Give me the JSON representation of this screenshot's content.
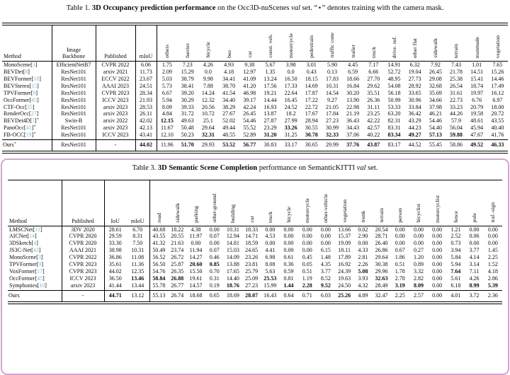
{
  "colors": {
    "cite_link": "#87b5cc",
    "panel_border": "#d7a2d3"
  },
  "star_symbol": "⋆",
  "table1": {
    "caption": {
      "label": "Table 1.",
      "title_bold": "3D Occupancy prediction performance",
      "mid": "on the Occ3D-nuScenes",
      "val": "val",
      "tail": "set. “⋆” denotes training with the camera mask."
    },
    "headers": {
      "method": "Method",
      "backbone": "Image Backbone",
      "published": "Published",
      "miou": "mIoU"
    },
    "class_columns": [
      "others",
      "barrier",
      "bicycle",
      "bus",
      "car",
      "const. veh.",
      "motorcycle",
      "pedestrain",
      "traffic cone",
      "trailer",
      "truck",
      "drive. suf.",
      "other flat",
      "sidewalk",
      "terrain",
      "manmade",
      "vegetation"
    ],
    "rows": [
      {
        "method": "MonoScene",
        "cite": "3",
        "star": false,
        "backbone": "EfficientNetB7",
        "pub": "CVPR 2022",
        "miou": "6.06",
        "miou_b": false,
        "v": [
          "1.75",
          "7.23",
          "4.26",
          "4.93",
          "9.38",
          "5.67",
          "3.98",
          "3.01",
          "5.90",
          "4.45",
          "7.17",
          "14.91",
          "6.32",
          "7.92",
          "7.43",
          "1.01",
          "7.65"
        ],
        "b": []
      },
      {
        "method": "BEVDet",
        "cite": "8",
        "star": false,
        "backbone": "ResNet101",
        "pub": "arxiv 2021",
        "miou": "11.73",
        "miou_b": false,
        "v": [
          "2.09",
          "15.29",
          "0.0",
          "4.18",
          "12.97",
          "1.35",
          "0.0",
          "0.43",
          "0.13",
          "6.59",
          "6.66",
          "52.72",
          "19.04",
          "26.45",
          "21.78",
          "14.51",
          "15.26"
        ],
        "b": []
      },
      {
        "method": "BEVFormer",
        "cite": "18",
        "star": false,
        "backbone": "ResNet101",
        "pub": "ECCV 2022",
        "miou": "23.67",
        "miou_b": false,
        "v": [
          "5.03",
          "38.79",
          "9.98",
          "34.41",
          "41.09",
          "13.24",
          "16.50",
          "18.15",
          "17.83",
          "18.66",
          "27.70",
          "48.95",
          "27.73",
          "29.08",
          "25.38",
          "15.41",
          "14.46"
        ],
        "b": []
      },
      {
        "method": "BEVStereo",
        "cite": "15",
        "star": false,
        "backbone": "ResNet101",
        "pub": "AAAI 2023",
        "miou": "24.51",
        "miou_b": false,
        "v": [
          "5.73",
          "38.41",
          "7.88",
          "38.70",
          "41.20",
          "17.56",
          "17.33",
          "14.69",
          "10.31",
          "16.84",
          "29.62",
          "54.08",
          "28.92",
          "32.68",
          "26.54",
          "18.74",
          "17.49"
        ],
        "b": []
      },
      {
        "method": "TPVFormer",
        "cite": "9",
        "star": false,
        "backbone": "ResNet101",
        "pub": "CVPR 2023",
        "miou": "28.34",
        "miou_b": false,
        "v": [
          "6.67",
          "39.20",
          "14.24",
          "41.54",
          "46.98",
          "19.21",
          "22.64",
          "17.87",
          "14.54",
          "30.20",
          "35.51",
          "56.18",
          "33.65",
          "35.69",
          "31.61",
          "19.97",
          "16.12"
        ],
        "b": []
      },
      {
        "method": "OccFormer",
        "cite": "45",
        "star": false,
        "backbone": "ResNet101",
        "pub": "ICCV 2023",
        "miou": "21.93",
        "miou_b": false,
        "v": [
          "5.94",
          "30.29",
          "12.32",
          "34.40",
          "39.17",
          "14.44",
          "16.45",
          "17.22",
          "9.27",
          "13.90",
          "26.36",
          "50.99",
          "30.96",
          "34.66",
          "22.73",
          "6.76",
          "6.97"
        ],
        "b": []
      },
      {
        "method": "CTF-Occ",
        "cite": "35",
        "star": false,
        "backbone": "ResNet101",
        "pub": "arxiv 2023",
        "miou": "28.53",
        "miou_b": false,
        "v": [
          "8.09",
          "39.33",
          "20.56",
          "38.29",
          "42.24",
          "16.93",
          "24.52",
          "22.72",
          "21.05",
          "22.98",
          "31.11",
          "53.33",
          "33.84",
          "37.98",
          "33.23",
          "20.79",
          "18.00"
        ],
        "b": []
      },
      {
        "method": "RenderOcc",
        "cite": "27",
        "star": false,
        "backbone": "ResNet101",
        "pub": "arxiv 2023",
        "miou": "26.11",
        "miou_b": false,
        "v": [
          "4.84",
          "31.72",
          "10.72",
          "27.67",
          "26.45",
          "13.87",
          "18.2",
          "17.67",
          "17.84",
          "21.19",
          "23.25",
          "63.20",
          "36.42",
          "46.21",
          "44.26",
          "19.58",
          "20.72"
        ],
        "b": []
      },
      {
        "method": "BEVDet4D",
        "cite": "7",
        "star": true,
        "backbone": "Swin-B",
        "pub": "arxiv 2022",
        "miou": "42.02",
        "miou_b": false,
        "v": [
          "12.15",
          "49.63",
          "25.1",
          "52.02",
          "54.46",
          "27.87",
          "27.99",
          "28.94",
          "27.23",
          "36.43",
          "42.22",
          "82.31",
          "43.29",
          "54.46",
          "57.9",
          "48.61",
          "43.55"
        ],
        "b": [
          0
        ]
      },
      {
        "method": "PanoOcc",
        "cite": "41",
        "star": true,
        "backbone": "ResNet101",
        "pub": "arxiv 2023",
        "miou": "42.13",
        "miou_b": false,
        "v": [
          "11.67",
          "50.48",
          "29.64",
          "49.44",
          "55.52",
          "23.29",
          "33.26",
          "30.55",
          "30.99",
          "34.43",
          "42.57",
          "83.31",
          "44.23",
          "54.40",
          "56.04",
          "45.94",
          "40.40"
        ],
        "b": [
          6
        ]
      },
      {
        "method": "FB-OCC",
        "cite": "19",
        "star": true,
        "backbone": "ResNet101",
        "pub": "ICCV 2023",
        "miou": "43.41",
        "miou_b": false,
        "v": [
          "12.10",
          "50.23",
          "32.31",
          "48.55",
          "52.89",
          "31.20",
          "31.25",
          "30.78",
          "32.33",
          "37.06",
          "40.22",
          "83.34",
          "49.27",
          "57.13",
          "59.88",
          "47.67",
          "41.76"
        ],
        "b": [
          2,
          5,
          7,
          8,
          11,
          12,
          13,
          14
        ]
      }
    ],
    "ours_row": {
      "method": "Ours",
      "cite": "",
      "star": true,
      "backbone": "ResNet101",
      "pub": "-",
      "miou": "44.02",
      "miou_b": true,
      "v": [
        "11.96",
        "51.70",
        "29.93",
        "53.52",
        "56.77",
        "30.83",
        "33.17",
        "30.65",
        "29.99",
        "37.76",
        "43.87",
        "83.17",
        "44.52",
        "55.45",
        "58.86",
        "49.52",
        "46.33"
      ],
      "b": [
        1,
        3,
        4,
        9,
        10,
        15,
        16
      ]
    }
  },
  "table3": {
    "caption": {
      "label": "Table 3.",
      "title_bold": "3D Semantic Scene Completion",
      "mid": "performance on SemanticKITTI",
      "val": "val",
      "tail": "set."
    },
    "headers": {
      "method": "Method",
      "published": "Published",
      "iou": "IoU",
      "miou": "mIoU"
    },
    "class_columns": [
      "road",
      "sidewalk",
      "parking",
      "other-ground",
      "building",
      "car",
      "truck",
      "bicycle",
      "motorcycle",
      "other-vehicle",
      "vegetation",
      "trunk",
      "terrain",
      "person",
      "bicyclist",
      "motorcyclist",
      "fence",
      "pole",
      "traf.-sign"
    ],
    "rows": [
      {
        "method": "LMSCNet",
        "cite": "31",
        "pub": "3DV 2020",
        "iou": "28.61",
        "iou_b": false,
        "miou": "6.70",
        "miou_b": false,
        "v": [
          "40.68",
          "18.22",
          "4.38",
          "0.00",
          "10.31",
          "18.33",
          "0.00",
          "0.00",
          "0.00",
          "0.00",
          "13.66",
          "0.02",
          "20.54",
          "0.00",
          "0.00",
          "0.00",
          "1.21",
          "0.00",
          "0.00"
        ],
        "b": []
      },
      {
        "method": "AICNet",
        "cite": "14",
        "pub": "CVPR 2020",
        "iou": "29.59",
        "iou_b": false,
        "miou": "8.31",
        "miou_b": false,
        "v": [
          "43.55",
          "20.55",
          "11.97",
          "0.07",
          "12.94",
          "14.71",
          "4.53",
          "0.00",
          "0.00",
          "0.00",
          "15.37",
          "2.90",
          "28.71",
          "0.00",
          "0.00",
          "0.00",
          "2.52",
          "0.06",
          "0.00"
        ],
        "b": []
      },
      {
        "method": "3DSketch",
        "cite": "4",
        "pub": "CVPR 2020",
        "iou": "33.30",
        "iou_b": false,
        "miou": "7.50",
        "miou_b": false,
        "v": [
          "41.32",
          "21.63",
          "0.00",
          "0.00",
          "14.81",
          "18.59",
          "0.00",
          "0.00",
          "0.00",
          "0.00",
          "19.09",
          "0.00",
          "26.40",
          "0.00",
          "0.00",
          "0.00",
          "0.73",
          "0.00",
          "0.00"
        ],
        "b": []
      },
      {
        "method": "JS3C-Net",
        "cite": "43",
        "pub": "AAAI 2021",
        "iou": "38.98",
        "iou_b": false,
        "miou": "10.31",
        "miou_b": false,
        "v": [
          "50.49",
          "23.74",
          "11.94",
          "0.07",
          "15.03",
          "24.65",
          "4.41",
          "0.00",
          "0.00",
          "6.15",
          "18.11",
          "4.33",
          "26.86",
          "0.67",
          "0.27",
          "0.00",
          "3.94",
          "3.77",
          "1.45"
        ],
        "b": []
      },
      {
        "method": "MonoScene",
        "cite": "3",
        "pub": "CVPR 2022",
        "iou": "36.86",
        "iou_b": false,
        "miou": "11.08",
        "miou_b": false,
        "v": [
          "56.52",
          "26.72",
          "14.27",
          "0.46",
          "14.09",
          "23.26",
          "6.98",
          "0.61",
          "0.45",
          "1.48",
          "17.89",
          "2.81",
          "29.64",
          "1.86",
          "1.20",
          "0.00",
          "5.84",
          "4.14",
          "2.25"
        ],
        "b": []
      },
      {
        "method": "TPVFormer",
        "cite": "9",
        "pub": "CVPR 2023",
        "iou": "35.61",
        "iou_b": false,
        "miou": "11.36",
        "miou_b": false,
        "v": [
          "56.50",
          "25.87",
          "20.60",
          "0.85",
          "13.88",
          "23.81",
          "8.08",
          "0.36",
          "0.05",
          "4.35",
          "16.92",
          "2.26",
          "30.38",
          "0.51",
          "0.89",
          "0.00",
          "5.94",
          "3.14",
          "1.52"
        ],
        "b": [
          2,
          3
        ]
      },
      {
        "method": "VoxFormer",
        "cite": "17",
        "pub": "CVPR 2023",
        "iou": "44.02",
        "iou_b": false,
        "miou": "12.35",
        "miou_b": false,
        "v": [
          "54.76",
          "26.35",
          "15.50",
          "0.70",
          "17.65",
          "25.79",
          "5.63",
          "0.59",
          "0.51",
          "3.77",
          "24.39",
          "5.08",
          "29.96",
          "1.78",
          "3.32",
          "0.00",
          "7.64",
          "7.11",
          "4.18"
        ],
        "b": [
          11,
          16
        ]
      },
      {
        "method": "OccFormer",
        "cite": "45",
        "pub": "ICCV 2023",
        "iou": "36.50",
        "iou_b": false,
        "miou": "13.46",
        "miou_b": true,
        "v": [
          "58.84",
          "26.88",
          "19.61",
          "0.31",
          "14.40",
          "25.09",
          "25.53",
          "0.81",
          "1.19",
          "8.52",
          "19.63",
          "3.93",
          "32.63",
          "2.78",
          "2.82",
          "0.00",
          "5.61",
          "4.26",
          "2.86"
        ],
        "b": [
          0,
          1,
          6,
          12
        ]
      },
      {
        "method": "Symphonies",
        "cite": "10",
        "pub": "arxiv 2023",
        "iou": "41.44",
        "iou_b": false,
        "miou": "13.44",
        "miou_b": false,
        "v": [
          "55.78",
          "26.77",
          "14.57",
          "0.19",
          "18.76",
          "27.23",
          "15.99",
          "1.44",
          "2.28",
          "9.52",
          "24.50",
          "4.32",
          "28.49",
          "3.19",
          "8.09",
          "0.00",
          "6.18",
          "8.99",
          "5.39"
        ],
        "b": [
          4,
          7,
          8,
          9,
          13,
          14,
          17,
          18
        ]
      }
    ],
    "ours_row": {
      "method": "Ours",
      "cite": "",
      "pub": "-",
      "iou": "44.71",
      "iou_b": true,
      "miou": "13.12",
      "miou_b": false,
      "v": [
        "55.13",
        "26.74",
        "18.68",
        "0.65",
        "18.69",
        "28.07",
        "16.43",
        "0.64",
        "0.71",
        "6.03",
        "25.26",
        "4.89",
        "32.47",
        "2.25",
        "2.57",
        "0.00",
        "4.01",
        "3.72",
        "2.36"
      ],
      "b": [
        5,
        10
      ]
    }
  }
}
